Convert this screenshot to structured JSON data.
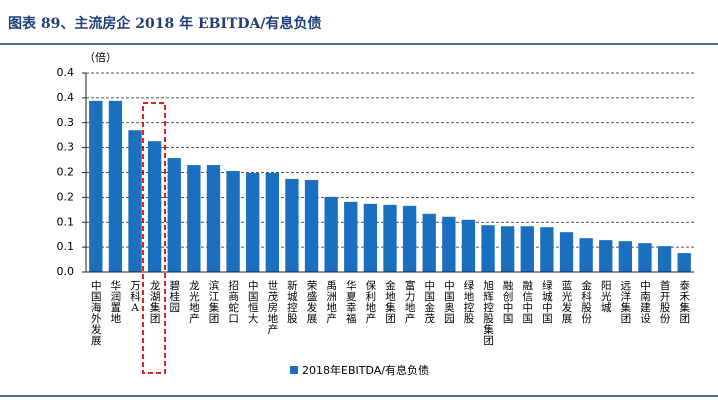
{
  "chart_data": {
    "type": "bar",
    "title": "图表 89、主流房企 2018 年 EBITDA/有息负债",
    "y_unit": "（倍）",
    "categories": [
      "中国海外发展",
      "华润置地",
      "万科A",
      "龙湖集团",
      "碧桂园",
      "龙光地产",
      "滨江集团",
      "招商蛇口",
      "中国恒大",
      "世茂房地产",
      "新城控股",
      "荣盛发展",
      "禹洲地产",
      "华夏幸福",
      "保利地产",
      "金地集团",
      "富力地产",
      "中国金茂",
      "中国奥园",
      "绿地控股",
      "旭辉控股集团",
      "融创中国",
      "融信中国",
      "绿城中国",
      "蓝光发展",
      "金科股份",
      "阳光城",
      "远洋集团",
      "中南建设",
      "首开股份",
      "泰禾集团"
    ],
    "series": [
      {
        "name": "2018年EBITDA/有息负债",
        "color": "#1b6fc0",
        "values": [
          0.344,
          0.344,
          0.285,
          0.263,
          0.229,
          0.215,
          0.215,
          0.203,
          0.199,
          0.199,
          0.187,
          0.185,
          0.151,
          0.141,
          0.137,
          0.135,
          0.133,
          0.117,
          0.111,
          0.105,
          0.094,
          0.092,
          0.092,
          0.09,
          0.08,
          0.068,
          0.064,
          0.062,
          0.058,
          0.052,
          0.038
        ]
      }
    ],
    "ylim": [
      0,
      0.4
    ],
    "yticks": [
      {
        "value": 0,
        "label": "0.0"
      },
      {
        "value": 0.05,
        "label": "0.1"
      },
      0.1,
      {
        "value": 0.15,
        "label": "0.2"
      },
      0.2,
      {
        "value": 0.25,
        "label": "0.3"
      },
      0.3,
      {
        "value": 0.35,
        "label": "0.4"
      },
      0.4
    ],
    "grid": true,
    "legend": "bottom"
  }
}
